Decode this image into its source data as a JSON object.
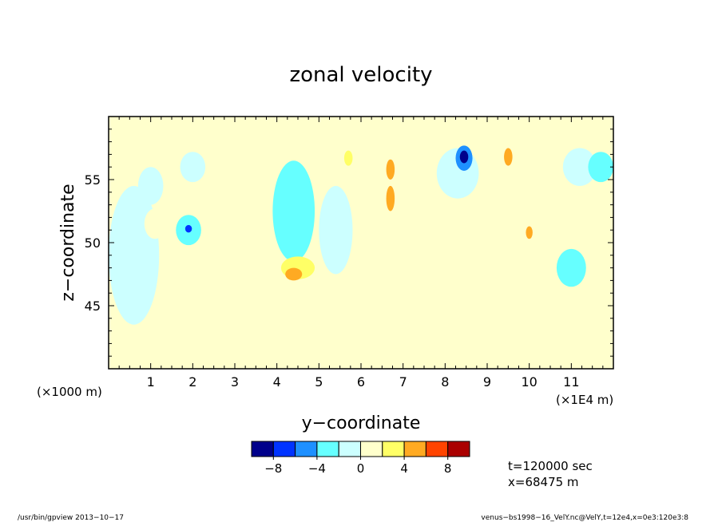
{
  "chart_data": {
    "type": "heatmap",
    "title": "zonal velocity",
    "xlabel": "y−coordinate",
    "ylabel": "z−coordinate",
    "x_unit_left": "(×1000 m)",
    "x_unit_right": "(×1E4 m)",
    "xlim": [
      0,
      12
    ],
    "ylim": [
      40,
      60
    ],
    "x_ticks": [
      1,
      2,
      3,
      4,
      5,
      6,
      7,
      8,
      9,
      10,
      11
    ],
    "y_ticks": [
      45,
      50,
      55
    ],
    "grid": false,
    "background_value": "0 to 2",
    "colorbar": {
      "colors": [
        "#00008b",
        "#0033ff",
        "#1e90ff",
        "#66ffff",
        "#ccffff",
        "#ffffcc",
        "#ffff66",
        "#ffaa22",
        "#ff4400",
        "#aa0000"
      ],
      "tick_labels": [
        "−8",
        "−4",
        "0",
        "4",
        "8"
      ],
      "tick_values": [
        -8,
        -4,
        0,
        4,
        8
      ],
      "bounds": [
        -10,
        -8,
        -6,
        -4,
        -2,
        0,
        2,
        4,
        6,
        8,
        10
      ]
    },
    "cells": [
      {
        "x": 0.6,
        "z": 49.0,
        "rx": 0.6,
        "rz": 5.5,
        "v": -1
      },
      {
        "x": 1.0,
        "z": 54.5,
        "rx": 0.3,
        "rz": 1.5,
        "v": -1
      },
      {
        "x": 1.1,
        "z": 51.5,
        "rx": 0.25,
        "rz": 1.2,
        "v": 1
      },
      {
        "x": 1.9,
        "z": 51.0,
        "rx": 0.3,
        "rz": 1.2,
        "v": -3
      },
      {
        "x": 1.9,
        "z": 51.1,
        "rx": 0.08,
        "rz": 0.3,
        "v": -7
      },
      {
        "x": 2.0,
        "z": 56.0,
        "rx": 0.3,
        "rz": 1.2,
        "v": -1
      },
      {
        "x": 2.0,
        "z": 53.5,
        "rx": 0.3,
        "rz": 1.2,
        "v": 1
      },
      {
        "x": 3.6,
        "z": 50.0,
        "rx": 0.6,
        "rz": 3.0,
        "v": 1
      },
      {
        "x": 4.4,
        "z": 52.5,
        "rx": 0.5,
        "rz": 4.0,
        "v": -3
      },
      {
        "x": 4.5,
        "z": 48.0,
        "rx": 0.4,
        "rz": 0.9,
        "v": 3
      },
      {
        "x": 4.4,
        "z": 47.5,
        "rx": 0.2,
        "rz": 0.5,
        "v": 5
      },
      {
        "x": 5.4,
        "z": 51.0,
        "rx": 0.4,
        "rz": 3.5,
        "v": -1
      },
      {
        "x": 5.7,
        "z": 56.7,
        "rx": 0.1,
        "rz": 0.6,
        "v": 3
      },
      {
        "x": 6.6,
        "z": 53.5,
        "rx": 0.35,
        "rz": 3.5,
        "v": 1
      },
      {
        "x": 6.7,
        "z": 53.5,
        "rx": 0.1,
        "rz": 1.0,
        "v": 5
      },
      {
        "x": 6.7,
        "z": 55.8,
        "rx": 0.1,
        "rz": 0.8,
        "v": 5
      },
      {
        "x": 7.8,
        "z": 48.5,
        "rx": 0.5,
        "rz": 1.5,
        "v": 1
      },
      {
        "x": 8.3,
        "z": 55.5,
        "rx": 0.5,
        "rz": 2.0,
        "v": -1
      },
      {
        "x": 8.45,
        "z": 56.7,
        "rx": 0.2,
        "rz": 1.0,
        "v": -5
      },
      {
        "x": 8.45,
        "z": 56.8,
        "rx": 0.1,
        "rz": 0.5,
        "v": -9
      },
      {
        "x": 9.5,
        "z": 56.8,
        "rx": 0.1,
        "rz": 0.7,
        "v": 5
      },
      {
        "x": 9.4,
        "z": 49.0,
        "rx": 0.4,
        "rz": 1.5,
        "v": 1
      },
      {
        "x": 9.8,
        "z": 53.5,
        "rx": 0.35,
        "rz": 1.8,
        "v": 1
      },
      {
        "x": 10.0,
        "z": 50.8,
        "rx": 0.08,
        "rz": 0.5,
        "v": 5
      },
      {
        "x": 11.0,
        "z": 48.0,
        "rx": 0.35,
        "rz": 1.5,
        "v": -3
      },
      {
        "x": 11.2,
        "z": 56.0,
        "rx": 0.4,
        "rz": 1.5,
        "v": -1
      },
      {
        "x": 11.7,
        "z": 56.0,
        "rx": 0.3,
        "rz": 1.2,
        "v": -3
      }
    ]
  },
  "annotations": {
    "time": "t=120000 sec",
    "position": "x=68475 m",
    "footer_left": "/usr/bin/gpview   2013−10−17",
    "footer_right": "venus−bs1998−16_VelY.nc@VelY,t=12e4,x=0e3:120e3:8"
  }
}
